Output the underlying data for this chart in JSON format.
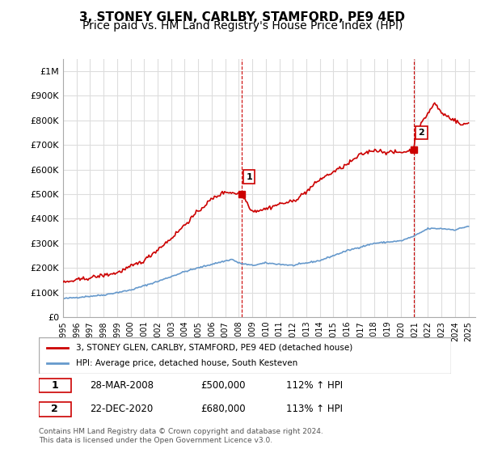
{
  "title": "3, STONEY GLEN, CARLBY, STAMFORD, PE9 4ED",
  "subtitle": "Price paid vs. HM Land Registry's House Price Index (HPI)",
  "ylabel_ticks": [
    "£0",
    "£100K",
    "£200K",
    "£300K",
    "£400K",
    "£500K",
    "£600K",
    "£700K",
    "£800K",
    "£900K",
    "£1M"
  ],
  "ytick_values": [
    0,
    100000,
    200000,
    300000,
    400000,
    500000,
    600000,
    700000,
    800000,
    900000,
    1000000
  ],
  "ylim": [
    0,
    1050000
  ],
  "xlim_start": 1995.0,
  "xlim_end": 2025.5,
  "red_line_color": "#cc0000",
  "blue_line_color": "#6699cc",
  "marker1_date": 2008.24,
  "marker1_value": 500000,
  "marker1_label": "1",
  "marker2_date": 2020.98,
  "marker2_value": 680000,
  "marker2_label": "2",
  "vline1_x": 2008.24,
  "vline2_x": 2020.98,
  "legend_red_label": "3, STONEY GLEN, CARLBY, STAMFORD, PE9 4ED (detached house)",
  "legend_blue_label": "HPI: Average price, detached house, South Kesteven",
  "annotation1_num": "1",
  "annotation1_date": "28-MAR-2008",
  "annotation1_price": "£500,000",
  "annotation1_hpi": "112% ↑ HPI",
  "annotation2_num": "2",
  "annotation2_date": "22-DEC-2020",
  "annotation2_price": "£680,000",
  "annotation2_hpi": "113% ↑ HPI",
  "footer": "Contains HM Land Registry data © Crown copyright and database right 2024.\nThis data is licensed under the Open Government Licence v3.0.",
  "background_color": "#ffffff",
  "grid_color": "#dddddd",
  "title_fontsize": 11,
  "subtitle_fontsize": 10
}
